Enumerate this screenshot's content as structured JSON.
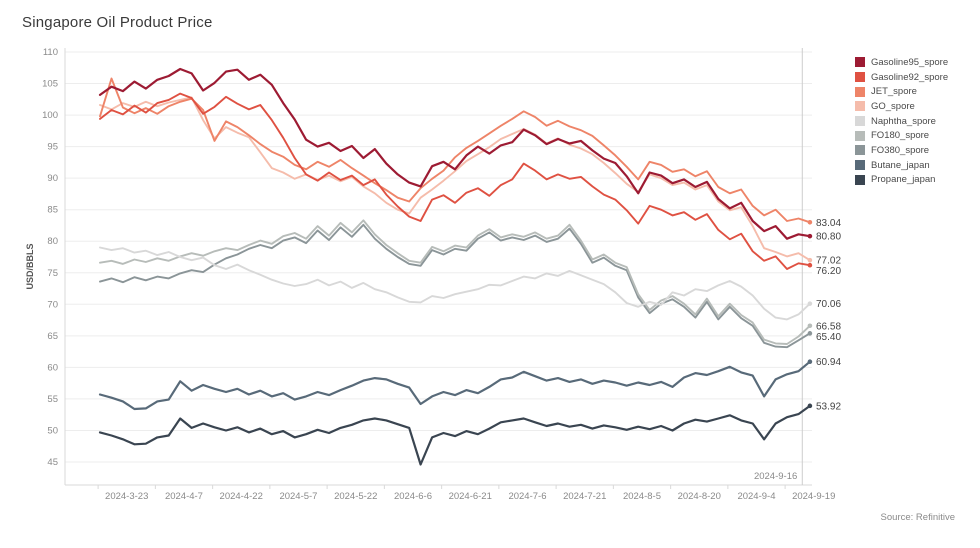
{
  "header": {
    "title": "Singapore Oil Product Price"
  },
  "source_note": "Source: Refinitive",
  "chart_data": {
    "type": "line",
    "title": "Singapore Oil Product Price",
    "xlabel": "",
    "ylabel": "USD/BBLS",
    "ylim": [
      41,
      110
    ],
    "y_ticks": [
      45,
      50,
      55,
      60,
      65,
      70,
      75,
      80,
      85,
      90,
      95,
      100,
      105,
      110
    ],
    "grid": "horizontal",
    "legend_position": "right",
    "x_start_date": "2024-3-16",
    "x_step_days": 3,
    "x_tick_labels": [
      "2024-3-23",
      "2024-4-7",
      "2024-4-22",
      "2024-5-7",
      "2024-5-22",
      "2024-6-6",
      "2024-6-21",
      "2024-7-6",
      "2024-7-21",
      "2024-8-5",
      "2024-8-20",
      "2024-9-4",
      "2024-9-19"
    ],
    "reference_line_label": "2024-9-16",
    "series": [
      {
        "name": "Gasoline95_spore",
        "color": "#9d1b33",
        "end_label": "80.80",
        "values": [
          103.2,
          104.5,
          103.8,
          105.3,
          104.2,
          105.6,
          106.2,
          107.3,
          106.6,
          103.9,
          105.1,
          106.9,
          107.2,
          105.6,
          106.4,
          104.8,
          101.9,
          99.3,
          96.1,
          95.0,
          95.6,
          94.3,
          95.1,
          93.2,
          94.6,
          92.3,
          90.6,
          89.3,
          88.7,
          91.9,
          92.6,
          91.4,
          93.6,
          95.0,
          93.9,
          95.2,
          95.7,
          97.7,
          96.8,
          95.4,
          96.2,
          95.5,
          95.9,
          94.4,
          93.1,
          92.4,
          90.3,
          87.6,
          90.9,
          90.4,
          89.2,
          89.8,
          88.6,
          89.4,
          86.7,
          85.2,
          86.1,
          83.2,
          81.6,
          82.4,
          80.4,
          81.1,
          80.8
        ]
      },
      {
        "name": "Gasoline92_spore",
        "color": "#df5142",
        "end_label": "76.20",
        "values": [
          99.4,
          100.8,
          100.1,
          101.5,
          100.4,
          101.9,
          102.4,
          103.4,
          102.7,
          100.2,
          101.3,
          102.9,
          101.8,
          100.9,
          101.6,
          99.2,
          96.4,
          93.2,
          90.6,
          89.6,
          90.9,
          89.7,
          90.4,
          88.9,
          89.8,
          87.4,
          85.5,
          83.9,
          83.2,
          86.6,
          87.3,
          86.1,
          87.7,
          88.4,
          87.2,
          88.9,
          89.8,
          92.3,
          91.2,
          89.8,
          90.6,
          89.9,
          90.2,
          88.7,
          87.4,
          86.6,
          84.9,
          82.8,
          85.6,
          85.0,
          84.1,
          84.6,
          83.4,
          84.3,
          81.8,
          80.3,
          81.2,
          78.4,
          76.9,
          77.6,
          75.6,
          76.5,
          76.2
        ]
      },
      {
        "name": "JET_spore",
        "color": "#ee8468",
        "end_label": "83.04",
        "values": [
          99.8,
          105.8,
          101.2,
          100.3,
          101.1,
          100.2,
          101.4,
          102.1,
          102.6,
          100.8,
          95.9,
          99.0,
          98.1,
          96.8,
          95.4,
          94.2,
          93.4,
          92.1,
          91.4,
          92.6,
          91.8,
          92.9,
          91.6,
          90.4,
          89.2,
          88.1,
          86.9,
          86.3,
          88.4,
          89.9,
          91.2,
          93.3,
          94.8,
          95.9,
          97.1,
          98.3,
          99.4,
          100.6,
          99.7,
          98.3,
          99.1,
          98.2,
          97.6,
          96.7,
          95.2,
          93.6,
          91.8,
          89.8,
          92.6,
          92.1,
          91.0,
          91.4,
          90.3,
          91.1,
          88.6,
          87.6,
          88.2,
          85.6,
          84.1,
          85.0,
          83.2,
          83.6,
          83.0
        ]
      },
      {
        "name": "GO_spore",
        "color": "#f5bcab",
        "end_label": "77.02",
        "values": [
          101.6,
          100.9,
          101.9,
          101.3,
          102.1,
          101.4,
          102.0,
          102.4,
          102.8,
          99.2,
          96.3,
          98.1,
          97.2,
          96.5,
          94.1,
          91.6,
          90.9,
          89.9,
          90.6,
          89.7,
          90.4,
          89.5,
          90.2,
          88.7,
          87.6,
          86.1,
          85.0,
          84.4,
          86.9,
          88.2,
          89.6,
          91.1,
          92.7,
          93.8,
          94.9,
          96.2,
          97.0,
          97.8,
          96.9,
          95.5,
          96.3,
          95.3,
          94.7,
          93.8,
          92.4,
          90.8,
          89.1,
          87.8,
          90.6,
          90.0,
          88.9,
          89.3,
          88.2,
          88.9,
          86.3,
          84.9,
          85.4,
          82.4,
          78.9,
          78.3,
          77.6,
          78.1,
          77.0
        ]
      },
      {
        "name": "Naphtha_spore",
        "color": "#d8d8d8",
        "end_label": "70.06",
        "values": [
          79.0,
          78.6,
          78.9,
          78.2,
          78.5,
          77.8,
          78.3,
          77.5,
          77.0,
          77.4,
          76.2,
          75.6,
          76.3,
          75.4,
          74.7,
          73.9,
          73.3,
          72.9,
          73.2,
          73.9,
          73.0,
          73.6,
          72.6,
          73.4,
          72.4,
          71.9,
          71.1,
          70.4,
          70.3,
          71.3,
          71.0,
          71.6,
          72.0,
          72.4,
          73.1,
          73.0,
          73.7,
          74.4,
          74.1,
          74.9,
          74.5,
          75.3,
          74.6,
          73.9,
          73.2,
          71.9,
          70.2,
          69.6,
          70.4,
          69.9,
          71.9,
          71.4,
          72.4,
          72.1,
          73.0,
          73.7,
          72.8,
          71.4,
          69.3,
          67.9,
          67.6,
          68.4,
          70.1
        ]
      },
      {
        "name": "FO180_spore",
        "color": "#b7bcb9",
        "end_label": "66.58",
        "values": [
          76.6,
          76.9,
          76.4,
          77.1,
          76.7,
          77.3,
          76.9,
          77.6,
          78.1,
          77.7,
          78.4,
          78.9,
          78.6,
          79.4,
          80.1,
          79.6,
          80.8,
          81.3,
          80.4,
          82.4,
          80.9,
          82.9,
          81.4,
          83.3,
          81.1,
          79.4,
          78.1,
          76.9,
          76.6,
          79.1,
          78.4,
          79.3,
          79.0,
          80.9,
          81.9,
          80.6,
          81.1,
          80.7,
          81.4,
          80.4,
          80.9,
          82.6,
          80.1,
          77.1,
          77.9,
          76.6,
          75.9,
          71.6,
          69.1,
          70.6,
          71.3,
          70.1,
          68.4,
          70.9,
          68.1,
          70.1,
          68.3,
          67.1,
          64.4,
          63.8,
          63.7,
          64.9,
          66.6
        ]
      },
      {
        "name": "FO380_spore",
        "color": "#8b9598",
        "end_label": "65.40",
        "values": [
          73.6,
          74.1,
          73.5,
          74.3,
          73.8,
          74.4,
          74.1,
          74.9,
          75.4,
          75.1,
          76.3,
          77.3,
          77.9,
          78.8,
          79.4,
          78.9,
          80.1,
          80.6,
          79.7,
          81.7,
          80.2,
          82.2,
          80.7,
          82.6,
          80.4,
          78.8,
          77.5,
          76.4,
          76.1,
          78.6,
          77.9,
          78.8,
          78.5,
          80.4,
          81.4,
          80.1,
          80.6,
          80.2,
          80.9,
          79.9,
          80.4,
          82.0,
          79.6,
          76.6,
          77.4,
          76.1,
          75.4,
          71.1,
          68.6,
          70.1,
          70.8,
          69.6,
          67.9,
          70.4,
          67.6,
          69.6,
          67.8,
          66.6,
          63.9,
          63.3,
          63.2,
          64.3,
          65.4
        ]
      },
      {
        "name": "Butane_japan",
        "color": "#586a79",
        "end_label": "60.94",
        "values": [
          55.7,
          55.2,
          54.6,
          53.4,
          53.5,
          54.6,
          54.9,
          57.8,
          56.3,
          57.2,
          56.6,
          56.1,
          56.6,
          55.7,
          56.3,
          55.4,
          55.9,
          54.9,
          55.4,
          56.1,
          55.6,
          56.4,
          57.1,
          57.9,
          58.3,
          58.1,
          57.4,
          56.8,
          54.2,
          55.4,
          56.1,
          55.6,
          56.4,
          55.9,
          56.9,
          58.1,
          58.4,
          59.3,
          58.6,
          57.9,
          58.3,
          57.7,
          58.1,
          57.4,
          57.9,
          57.6,
          57.1,
          57.6,
          57.2,
          57.7,
          56.9,
          58.4,
          59.1,
          58.8,
          59.4,
          60.1,
          59.2,
          58.7,
          55.4,
          58.1,
          58.9,
          59.4,
          60.9
        ]
      },
      {
        "name": "Propane_japan",
        "color": "#3a4551",
        "end_label": "53.92",
        "values": [
          49.7,
          49.2,
          48.6,
          47.8,
          47.9,
          48.9,
          49.2,
          51.9,
          50.4,
          51.1,
          50.5,
          50.0,
          50.5,
          49.7,
          50.3,
          49.4,
          49.9,
          48.9,
          49.4,
          50.1,
          49.6,
          50.4,
          50.9,
          51.6,
          51.9,
          51.6,
          51.0,
          50.4,
          44.6,
          48.9,
          49.6,
          49.1,
          49.9,
          49.4,
          50.3,
          51.3,
          51.6,
          51.9,
          51.3,
          50.7,
          51.1,
          50.6,
          50.9,
          50.3,
          50.8,
          50.5,
          50.1,
          50.6,
          50.2,
          50.7,
          50.0,
          51.1,
          51.7,
          51.4,
          51.9,
          52.4,
          51.6,
          51.1,
          48.6,
          51.1,
          52.1,
          52.6,
          53.9
        ]
      }
    ]
  }
}
